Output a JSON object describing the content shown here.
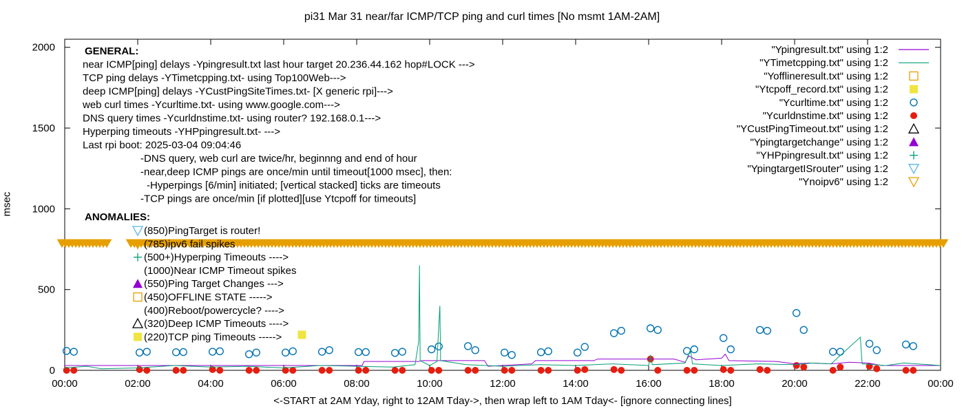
{
  "chart_data": {
    "type": "line",
    "title": "pi31 Mar 31  near/far ICMP/TCP ping and curl times [No msmt 1AM-2AM]",
    "xlabel": "<-START at 2AM Yday, right to 12AM Tday->, then wrap left to 1AM Tday<- [ignore connecting lines]",
    "ylabel": "msec",
    "xlim": [
      0,
      24
    ],
    "ylim": [
      0,
      2050
    ],
    "x_ticks": [
      {
        "v": 0,
        "label": "00:00"
      },
      {
        "v": 2,
        "label": "02:00"
      },
      {
        "v": 4,
        "label": "04:00"
      },
      {
        "v": 6,
        "label": "06:00"
      },
      {
        "v": 8,
        "label": "08:00"
      },
      {
        "v": 10,
        "label": "10:00"
      },
      {
        "v": 12,
        "label": "12:00"
      },
      {
        "v": 14,
        "label": "14:00"
      },
      {
        "v": 16,
        "label": "16:00"
      },
      {
        "v": 18,
        "label": "18:00"
      },
      {
        "v": 20,
        "label": "20:00"
      },
      {
        "v": 22,
        "label": "22:00"
      },
      {
        "v": 24,
        "label": "00:00"
      }
    ],
    "y_ticks": [
      {
        "v": 0,
        "label": "0"
      },
      {
        "v": 500,
        "label": "500"
      },
      {
        "v": 1000,
        "label": "1000"
      },
      {
        "v": 1500,
        "label": "1500"
      },
      {
        "v": 2000,
        "label": "2000"
      }
    ],
    "grid": false,
    "legend_position": "top-right",
    "colors": {
      "ypingresult": "#9400d3",
      "ytimetcpping": "#009e73",
      "yofflineresult": "#e69f00",
      "ytcpoff": "#f0e442",
      "ycurltime": "#0072b2",
      "ycurldnstime": "#e51e10",
      "ycustpingtimeout": "#000000",
      "ypingtargetchange": "#9400d3",
      "yhppingresult": "#009e73",
      "ypingtargetisrouter": "#56b4e9",
      "ynoipv6": "#e69f00",
      "noipv6_band": "#e69f00"
    },
    "legend": [
      {
        "label": "\"Ypingresult.txt\" using 1:2",
        "sym": "line",
        "color": "#9400d3"
      },
      {
        "label": "\"YTimetcpping.txt\" using 1:2",
        "sym": "line",
        "color": "#009e73"
      },
      {
        "label": "\"Yofflineresult.txt\" using 1:2",
        "sym": "square-open",
        "color": "#e69f00"
      },
      {
        "label": "\"Ytcpoff_record.txt\" using 1:2",
        "sym": "square-filled",
        "color": "#f0e442"
      },
      {
        "label": "\"Ycurltime.txt\" using 1:2",
        "sym": "circle-open",
        "color": "#0072b2"
      },
      {
        "label": "\"Ycurldnstime.txt\" using 1:2",
        "sym": "circle-filled",
        "color": "#e51e10"
      },
      {
        "label": "\"YCustPingTimeout.txt\" using 1:2",
        "sym": "tri-up-open",
        "color": "#000000"
      },
      {
        "label": "\"Ypingtargetchange\" using 1:2",
        "sym": "tri-up-filled",
        "color": "#9400d3"
      },
      {
        "label": "\"YHPpingresult.txt\" using 1:2",
        "sym": "plus",
        "color": "#009e73"
      },
      {
        "label": "\"YpingtargetISrouter\" using 1:2",
        "sym": "tri-down-open",
        "color": "#56b4e9"
      },
      {
        "label": "\"Ynoipv6\" using 1:2",
        "sym": "tri-down-open",
        "color": "#e69f00"
      }
    ],
    "annotations_general": [
      {
        "text": "GENERAL:",
        "bold": true,
        "indent": 0
      },
      {
        "text": "near ICMP[ping] delays -Ypingresult.txt last hour target 20.236.44.162 hop#LOCK --->",
        "indent": 0
      },
      {
        "text": "TCP ping delays -YTimetcpping.txt- using Top100Web--->",
        "indent": 0
      },
      {
        "text": "deep ICMP[ping] delays -YCustPingSiteTimes.txt- [X generic rpi]--->",
        "indent": 0
      },
      {
        "text": "web curl times -Ycurltime.txt- using www.google.com--->",
        "indent": 0
      },
      {
        "text": "DNS query times -Ycurldnstime.txt- using router? 192.168.0.1--->",
        "indent": 0
      },
      {
        "text": "Hyperping timeouts -YHPpingresult.txt- --->",
        "indent": 0
      },
      {
        "text": "Last rpi boot: 2025-03-04 09:04:46",
        "indent": 0
      },
      {
        "text": "-DNS query, web curl are twice/hr, beginnng and end of hour",
        "indent": 1
      },
      {
        "text": "-near,deep ICMP pings are once/min until timeout[1000 msec], then:",
        "indent": 1
      },
      {
        "text": "-Hyperpings [6/min] initiated; [vertical stacked] ticks are timeouts",
        "indent": 2
      },
      {
        "text": "-TCP pings are once/min [if plotted][use Ytcpoff for timeouts]",
        "indent": 1
      }
    ],
    "anomalies_title": "ANOMALIES:",
    "anomalies": [
      {
        "text": "(850)PingTarget is router!",
        "sym": "tri-down-open",
        "color": "#56b4e9"
      },
      {
        "text": "(785)ipv6 fail spikes",
        "sym": "tri-down-open",
        "color": "#e69f00"
      },
      {
        "text": "(500+)Hyperping Timeouts ---->",
        "sym": "plus",
        "color": "#009e73"
      },
      {
        "text": "(1000)Near ICMP Timeout spikes",
        "sym": "none",
        "color": "#000000"
      },
      {
        "text": "(550)Ping Target Changes --->",
        "sym": "tri-up-filled",
        "color": "#9400d3"
      },
      {
        "text": "(450)OFFLINE STATE ----->",
        "sym": "square-open",
        "color": "#e69f00"
      },
      {
        "text": "(400)Reboot/powercycle? ---->",
        "sym": "none",
        "color": "#000000"
      },
      {
        "text": "(320)Deep ICMP Timeouts ---->",
        "sym": "tri-up-open",
        "color": "#000000"
      },
      {
        "text": "(220)TCP ping Timeouts ----->",
        "sym": "square-filled",
        "color": "#f0e442"
      }
    ],
    "series": [
      {
        "name": "\"Ycurltime.txt\" using 1:2",
        "marker": "circle-open",
        "color": "#0072b2",
        "points": [
          [
            0.05,
            120
          ],
          [
            0.25,
            115
          ],
          [
            2.05,
            110
          ],
          [
            2.25,
            115
          ],
          [
            3.05,
            112
          ],
          [
            3.25,
            113
          ],
          [
            4.05,
            115
          ],
          [
            4.25,
            118
          ],
          [
            5.05,
            100
          ],
          [
            5.25,
            110
          ],
          [
            6.05,
            110
          ],
          [
            6.25,
            118
          ],
          [
            7.05,
            115
          ],
          [
            7.25,
            125
          ],
          [
            8.05,
            113
          ],
          [
            8.25,
            113
          ],
          [
            9.05,
            108
          ],
          [
            9.25,
            115
          ],
          [
            10.05,
            130
          ],
          [
            10.25,
            148
          ],
          [
            11.05,
            150
          ],
          [
            11.25,
            125
          ],
          [
            12.05,
            110
          ],
          [
            12.25,
            95
          ],
          [
            13.05,
            112
          ],
          [
            13.25,
            118
          ],
          [
            14.05,
            110
          ],
          [
            14.25,
            145
          ],
          [
            15.05,
            230
          ],
          [
            15.25,
            245
          ],
          [
            16.05,
            260
          ],
          [
            16.25,
            250
          ],
          [
            17.05,
            120
          ],
          [
            17.25,
            130
          ],
          [
            18.05,
            200
          ],
          [
            18.25,
            130
          ],
          [
            19.05,
            250
          ],
          [
            19.25,
            245
          ],
          [
            20.05,
            355
          ],
          [
            20.25,
            250
          ],
          [
            21.05,
            115
          ],
          [
            21.25,
            115
          ],
          [
            22.05,
            165
          ],
          [
            22.25,
            125
          ],
          [
            23.05,
            160
          ],
          [
            23.25,
            150
          ]
        ]
      },
      {
        "name": "\"Ycurldnstime.txt\" using 1:2",
        "marker": "circle-filled",
        "color": "#e51e10",
        "points": [
          [
            0.05,
            0
          ],
          [
            0.25,
            0
          ],
          [
            2.05,
            5
          ],
          [
            2.25,
            0
          ],
          [
            3.05,
            0
          ],
          [
            3.25,
            0
          ],
          [
            4.05,
            5
          ],
          [
            4.25,
            0
          ],
          [
            5.05,
            0
          ],
          [
            5.25,
            0
          ],
          [
            6.05,
            0
          ],
          [
            6.25,
            0
          ],
          [
            7.05,
            0
          ],
          [
            7.25,
            0
          ],
          [
            8.05,
            0
          ],
          [
            8.25,
            0
          ],
          [
            9.05,
            0
          ],
          [
            9.25,
            0
          ],
          [
            10.05,
            0
          ],
          [
            10.25,
            0
          ],
          [
            11.05,
            0
          ],
          [
            11.25,
            0
          ],
          [
            12.05,
            0
          ],
          [
            12.25,
            0
          ],
          [
            13.05,
            0
          ],
          [
            13.25,
            0
          ],
          [
            14.05,
            0
          ],
          [
            14.25,
            5
          ],
          [
            15.05,
            5
          ],
          [
            15.25,
            0
          ],
          [
            16.05,
            70
          ],
          [
            16.25,
            0
          ],
          [
            17.05,
            0
          ],
          [
            17.25,
            0
          ],
          [
            18.05,
            5
          ],
          [
            18.25,
            0
          ],
          [
            19.05,
            5
          ],
          [
            19.25,
            0
          ],
          [
            20.05,
            30
          ],
          [
            20.25,
            20
          ],
          [
            21.05,
            0
          ],
          [
            21.25,
            20
          ],
          [
            22.05,
            25
          ],
          [
            22.25,
            10
          ],
          [
            23.05,
            0
          ],
          [
            23.25,
            0
          ]
        ]
      },
      {
        "name": "\"Ypingresult.txt\" using 1:2",
        "marker": "line",
        "color": "#9400d3",
        "points": [
          [
            0,
            30
          ],
          [
            1.0,
            30
          ],
          [
            2.0,
            30
          ],
          [
            8.15,
            30
          ],
          [
            8.2,
            55
          ],
          [
            9.7,
            55
          ],
          [
            9.8,
            60
          ],
          [
            10.1,
            60
          ],
          [
            11.5,
            60
          ],
          [
            11.6,
            25
          ],
          [
            12.8,
            40
          ],
          [
            12.9,
            60
          ],
          [
            14.5,
            60
          ],
          [
            14.6,
            70
          ],
          [
            16.7,
            70
          ],
          [
            17.0,
            50
          ],
          [
            17.1,
            90
          ],
          [
            17.3,
            65
          ],
          [
            18.0,
            75
          ],
          [
            18.1,
            100
          ],
          [
            18.2,
            60
          ],
          [
            19.5,
            55
          ],
          [
            20.0,
            40
          ],
          [
            20.4,
            45
          ],
          [
            21.0,
            40
          ],
          [
            21.5,
            50
          ],
          [
            22.0,
            45
          ],
          [
            22.4,
            30
          ],
          [
            24,
            30
          ]
        ]
      },
      {
        "name": "\"YTimetcpping.txt\" using 1:2",
        "marker": "line",
        "color": "#009e73",
        "points": [
          [
            0,
            15
          ],
          [
            0.6,
            25
          ],
          [
            1.0,
            10
          ],
          [
            2.0,
            15
          ],
          [
            3.0,
            30
          ],
          [
            4.0,
            20
          ],
          [
            5.0,
            25
          ],
          [
            6.0,
            15
          ],
          [
            7.0,
            30
          ],
          [
            8.0,
            25
          ],
          [
            9.0,
            20
          ],
          [
            9.6,
            35
          ],
          [
            9.7,
            180
          ],
          [
            9.72,
            650
          ],
          [
            9.74,
            60
          ],
          [
            10.0,
            30
          ],
          [
            10.2,
            55
          ],
          [
            10.28,
            400
          ],
          [
            10.3,
            60
          ],
          [
            11.0,
            35
          ],
          [
            12.0,
            25
          ],
          [
            13.0,
            35
          ],
          [
            14.0,
            30
          ],
          [
            15.0,
            40
          ],
          [
            16.0,
            30
          ],
          [
            16.05,
            95
          ],
          [
            16.1,
            35
          ],
          [
            17.0,
            45
          ],
          [
            17.15,
            130
          ],
          [
            17.2,
            40
          ],
          [
            18.0,
            30
          ],
          [
            19.0,
            40
          ],
          [
            20.0,
            35
          ],
          [
            20.5,
            45
          ],
          [
            21.0,
            40
          ],
          [
            21.8,
            205
          ],
          [
            21.85,
            40
          ],
          [
            22.5,
            30
          ],
          [
            23.0,
            45
          ],
          [
            24,
            30
          ]
        ]
      }
    ],
    "noipv6_band": {
      "y": 785
    },
    "ytcpoff_marker": {
      "x": 6.5,
      "y": 220
    }
  }
}
